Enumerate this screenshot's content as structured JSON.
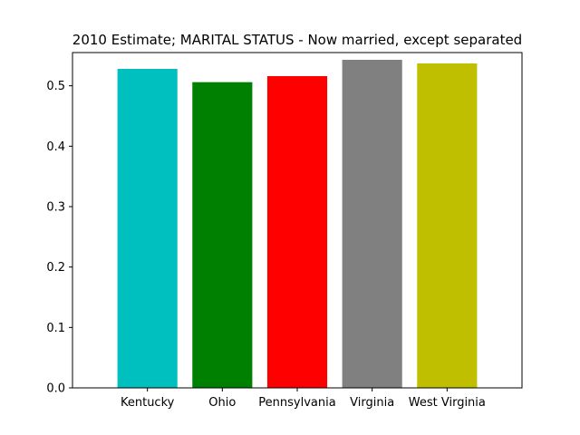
{
  "chart_data": {
    "type": "bar",
    "title": "2010 Estimate; MARITAL STATUS - Now married, except separated",
    "xlabel": "",
    "ylabel": "",
    "categories": [
      "Kentucky",
      "Ohio",
      "Pennsylvania",
      "Virginia",
      "West Virginia"
    ],
    "values": [
      0.528,
      0.506,
      0.516,
      0.543,
      0.537
    ],
    "colors": [
      "#00bfbf",
      "#008000",
      "#ff0000",
      "#808080",
      "#bfbf00"
    ],
    "ylim": [
      0,
      0.555
    ],
    "yticks": [
      0.0,
      0.1,
      0.2,
      0.3,
      0.4,
      0.5
    ],
    "ytick_labels": [
      "0.0",
      "0.1",
      "0.2",
      "0.3",
      "0.4",
      "0.5"
    ],
    "grid": false,
    "legend": "none"
  }
}
